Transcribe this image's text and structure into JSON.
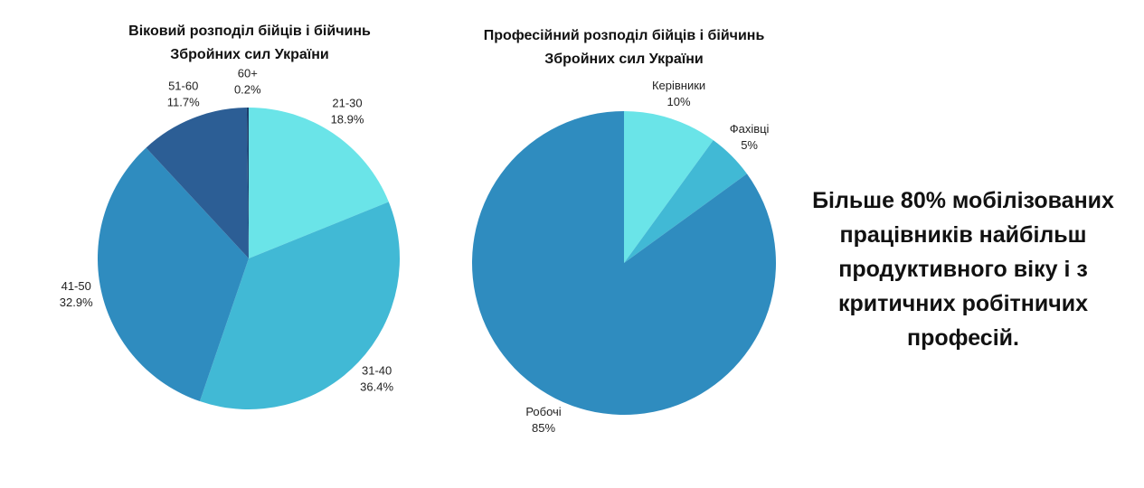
{
  "chart_data": [
    {
      "type": "pie",
      "title": "Віковий розподіл бійців і бійчинь Збройних сил України",
      "categories": [
        "21-30",
        "31-40",
        "41-50",
        "51-60",
        "60+"
      ],
      "values": [
        18.9,
        36.4,
        32.9,
        11.7,
        0.2
      ],
      "value_labels": [
        "18.9%",
        "36.4%",
        "32.9%",
        "11.7%",
        "0.2%"
      ],
      "colors": [
        "#6ae4e8",
        "#41b9d5",
        "#2f8cbf",
        "#2c5e95",
        "#1d3d6b"
      ]
    },
    {
      "type": "pie",
      "title": "Професійний розподіл бійців і бійчинь Збройних сил України",
      "categories": [
        "Керівники",
        "Фахівці",
        "Робочі"
      ],
      "values": [
        10,
        5,
        85
      ],
      "value_labels": [
        "10%",
        "5%",
        "85%"
      ],
      "colors": [
        "#6ae4e8",
        "#41b9d5",
        "#2f8cbf"
      ]
    }
  ],
  "caption": "Більше 80% мобілізованих працівників найбільш продуктивного віку і з критичних робітничих професій."
}
